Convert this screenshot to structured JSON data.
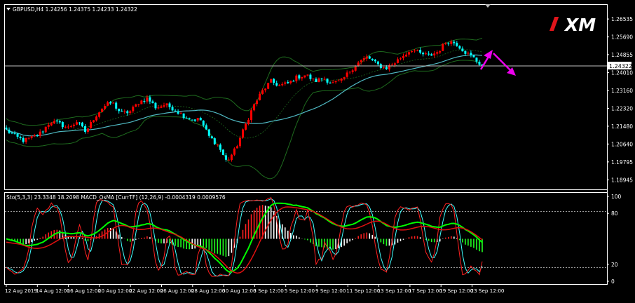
{
  "header": {
    "main_title": "GBPUSD,H4  1.24256 1.24375 1.24233 1.24322",
    "sub_title": "Sto(5,3,3) 23.3348 18.2098  MACD_OsMA [CurrTF] (12,26,9) -0.0004319 0.0009576"
  },
  "logo": {
    "text": "XM"
  },
  "colors": {
    "background": "#000000",
    "bull": "#ff0000",
    "bear": "#00ffff",
    "bands": "#1e6b1e",
    "ma": "#4fb8c2",
    "stoch_main": "#ff2020",
    "stoch_signal": "#40ffff",
    "macd_line": "#00ff00",
    "pink": "#ee00ee",
    "axis_text": "#ffffff"
  },
  "chart_data": [
    {
      "type": "candlestick",
      "symbol": "GBPUSD",
      "timeframe": "H4",
      "last_price": "1.24322",
      "ylim": [
        1.185,
        1.272
      ],
      "y_ticks": [
        "1.26535",
        "1.25690",
        "1.24855",
        "1.24010",
        "1.23160",
        "1.22320",
        "1.21480",
        "1.20640",
        "1.19795",
        "1.18945"
      ],
      "close_path": [
        1.213,
        1.21,
        1.208,
        1.2095,
        1.212,
        1.217,
        1.216,
        1.214,
        1.217,
        1.212,
        1.219,
        1.224,
        1.226,
        1.221,
        1.2215,
        1.226,
        1.228,
        1.2235,
        1.225,
        1.223,
        1.22,
        1.218,
        1.218,
        1.21,
        1.206,
        1.198,
        1.204,
        1.214,
        1.224,
        1.231,
        1.236,
        1.234,
        1.235,
        1.238,
        1.239,
        1.236,
        1.2375,
        1.235,
        1.236,
        1.241,
        1.245,
        1.2475,
        1.244,
        1.242,
        1.2445,
        1.248,
        1.251,
        1.249,
        1.248,
        1.25,
        1.255,
        1.254,
        1.25,
        1.247,
        1.2432
      ],
      "candle_count": 170,
      "bollinger": "20-period bands",
      "moving_average": "40-period"
    },
    {
      "type": "oscillator",
      "indicators": [
        "Sto(5,3,3)",
        "MACD_OsMA [CurrTF] (12,26,9)"
      ],
      "ylim": [
        0,
        100
      ],
      "y_ticks": [
        "100",
        "80",
        "20",
        "0"
      ],
      "levels": [
        80,
        20
      ],
      "stoch_main": 23.3348,
      "stoch_signal": 18.2098,
      "macd_values": [
        -0.0004319,
        0.0009576
      ]
    }
  ],
  "x_axis": {
    "labels": [
      "12 Aug 2019",
      "14 Aug 12:00",
      "16 Aug 12:00",
      "20 Aug 12:00",
      "22 Aug 12:00",
      "26 Aug 12:00",
      "28 Aug 12:00",
      "30 Aug 12:00",
      "3 Sep 12:00",
      "5 Sep 12:00",
      "9 Sep 12:00",
      "11 Sep 12:00",
      "13 Sep 12:00",
      "17 Sep 12:00",
      "19 Sep 12:00",
      "23 Sep 12:00"
    ]
  }
}
